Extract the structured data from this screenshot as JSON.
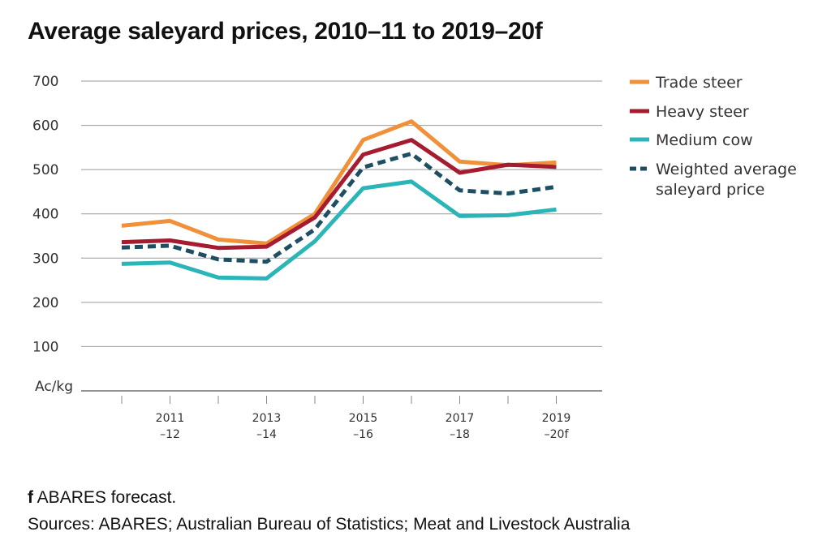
{
  "title": "Average saleyard prices, 2010–11 to 2019–20f",
  "footnote": {
    "marker": "f",
    "text": " ABARES forecast.",
    "sources": "Sources: ABARES; Australian Bureau of Statistics; Meat and Livestock Australia"
  },
  "chart_data": {
    "type": "line",
    "title": "Average saleyard prices, 2010–11 to 2019–20f",
    "ylabel": "Ac/kg",
    "ylim": [
      0,
      700
    ],
    "yticks": [
      100,
      200,
      300,
      400,
      500,
      600,
      700
    ],
    "grid": true,
    "legend_position": "right",
    "x": [
      "2010–11",
      "2011–12",
      "2012–13",
      "2013–14",
      "2014–15",
      "2015–16",
      "2016–17",
      "2017–18",
      "2018–19",
      "2019–20f"
    ],
    "x_tick_labels": [
      {
        "index": 1,
        "line1": "2011",
        "line2": "–12"
      },
      {
        "index": 3,
        "line1": "2013",
        "line2": "–14"
      },
      {
        "index": 5,
        "line1": "2015",
        "line2": "–16"
      },
      {
        "index": 7,
        "line1": "2017",
        "line2": "–18"
      },
      {
        "index": 9,
        "line1": "2019",
        "line2": "–20f"
      }
    ],
    "series": [
      {
        "name": "Trade steer",
        "color": "#f0913a",
        "style": "solid",
        "values": [
          373,
          384,
          342,
          333,
          400,
          567,
          609,
          518,
          510,
          516
        ]
      },
      {
        "name": "Heavy steer",
        "color": "#a51c30",
        "style": "solid",
        "values": [
          336,
          340,
          323,
          326,
          392,
          534,
          567,
          493,
          511,
          506
        ]
      },
      {
        "name": "Medium cow",
        "color": "#2bb5b8",
        "style": "solid",
        "values": [
          287,
          290,
          256,
          254,
          338,
          458,
          473,
          395,
          397,
          410
        ]
      },
      {
        "name": "Weighted average saleyard price",
        "legend_lines": [
          "Weighted average",
          "saleyard price"
        ],
        "color": "#1d4e63",
        "style": "dashed",
        "values": [
          324,
          328,
          297,
          292,
          365,
          505,
          536,
          453,
          446,
          461
        ]
      }
    ]
  }
}
